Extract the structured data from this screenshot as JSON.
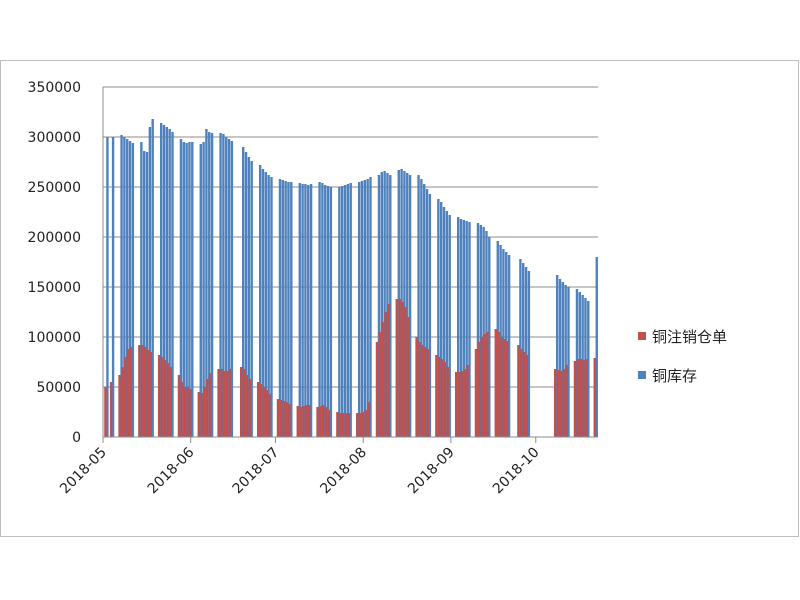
{
  "chart_data": {
    "type": "bar",
    "title": "",
    "xlabel": "",
    "ylabel": "",
    "ylim": [
      0,
      350000
    ],
    "y_ticks": [
      "0",
      "50000",
      "100000",
      "150000",
      "200000",
      "250000",
      "300000",
      "350000"
    ],
    "x_ticks": [
      "2018-05",
      "2018-06",
      "2018-07",
      "2018-08",
      "2018-09",
      "2018-10"
    ],
    "grid": "horizontal",
    "legend_position": "right",
    "series": [
      {
        "name": "铜注销仓单",
        "color": "#c0504d",
        "points": [
          [
            "2018-05-02",
            50000
          ],
          [
            "2018-05-04",
            55000
          ],
          [
            "2018-05-07",
            62000
          ],
          [
            "2018-05-08",
            70000
          ],
          [
            "2018-05-09",
            80000
          ],
          [
            "2018-05-10",
            88000
          ],
          [
            "2018-05-11",
            90000
          ],
          [
            "2018-05-14",
            92000
          ],
          [
            "2018-05-15",
            92000
          ],
          [
            "2018-05-16",
            90000
          ],
          [
            "2018-05-17",
            87000
          ],
          [
            "2018-05-18",
            85000
          ],
          [
            "2018-05-21",
            82000
          ],
          [
            "2018-05-22",
            80000
          ],
          [
            "2018-05-23",
            77000
          ],
          [
            "2018-05-24",
            74000
          ],
          [
            "2018-05-25",
            70000
          ],
          [
            "2018-05-28",
            62000
          ],
          [
            "2018-05-29",
            55000
          ],
          [
            "2018-05-30",
            50000
          ],
          [
            "2018-05-31",
            50000
          ],
          [
            "2018-06-01",
            48000
          ],
          [
            "2018-06-04",
            45000
          ],
          [
            "2018-06-05",
            44000
          ],
          [
            "2018-06-06",
            50000
          ],
          [
            "2018-06-07",
            58000
          ],
          [
            "2018-06-08",
            64000
          ],
          [
            "2018-06-11",
            68000
          ],
          [
            "2018-06-12",
            68000
          ],
          [
            "2018-06-13",
            66000
          ],
          [
            "2018-06-14",
            66000
          ],
          [
            "2018-06-15",
            68000
          ],
          [
            "2018-06-19",
            70000
          ],
          [
            "2018-06-20",
            68000
          ],
          [
            "2018-06-21",
            62000
          ],
          [
            "2018-06-22",
            58000
          ],
          [
            "2018-06-25",
            55000
          ],
          [
            "2018-06-26",
            53000
          ],
          [
            "2018-06-27",
            50000
          ],
          [
            "2018-06-28",
            47000
          ],
          [
            "2018-06-29",
            43000
          ],
          [
            "2018-07-02",
            38000
          ],
          [
            "2018-07-03",
            37000
          ],
          [
            "2018-07-04",
            36000
          ],
          [
            "2018-07-05",
            35000
          ],
          [
            "2018-07-06",
            33000
          ],
          [
            "2018-07-09",
            31000
          ],
          [
            "2018-07-10",
            30000
          ],
          [
            "2018-07-11",
            31000
          ],
          [
            "2018-07-12",
            32000
          ],
          [
            "2018-07-13",
            32000
          ],
          [
            "2018-07-16",
            30000
          ],
          [
            "2018-07-17",
            31000
          ],
          [
            "2018-07-18",
            32000
          ],
          [
            "2018-07-19",
            30000
          ],
          [
            "2018-07-20",
            27000
          ],
          [
            "2018-07-23",
            25000
          ],
          [
            "2018-07-24",
            24000
          ],
          [
            "2018-07-25",
            24000
          ],
          [
            "2018-07-26",
            24000
          ],
          [
            "2018-07-27",
            24000
          ],
          [
            "2018-07-30",
            24000
          ],
          [
            "2018-07-31",
            24000
          ],
          [
            "2018-08-01",
            25000
          ],
          [
            "2018-08-02",
            27000
          ],
          [
            "2018-08-03",
            35000
          ],
          [
            "2018-08-06",
            95000
          ],
          [
            "2018-08-07",
            105000
          ],
          [
            "2018-08-08",
            115000
          ],
          [
            "2018-08-09",
            125000
          ],
          [
            "2018-08-10",
            133000
          ],
          [
            "2018-08-13",
            138000
          ],
          [
            "2018-08-14",
            138000
          ],
          [
            "2018-08-15",
            135000
          ],
          [
            "2018-08-16",
            130000
          ],
          [
            "2018-08-17",
            120000
          ],
          [
            "2018-08-20",
            100000
          ],
          [
            "2018-08-21",
            95000
          ],
          [
            "2018-08-22",
            92000
          ],
          [
            "2018-08-23",
            90000
          ],
          [
            "2018-08-24",
            88000
          ],
          [
            "2018-08-27",
            82000
          ],
          [
            "2018-08-28",
            80000
          ],
          [
            "2018-08-29",
            78000
          ],
          [
            "2018-08-30",
            75000
          ],
          [
            "2018-08-31",
            70000
          ],
          [
            "2018-09-03",
            65000
          ],
          [
            "2018-09-04",
            65000
          ],
          [
            "2018-09-05",
            66000
          ],
          [
            "2018-09-06",
            68000
          ],
          [
            "2018-09-07",
            72000
          ],
          [
            "2018-09-10",
            88000
          ],
          [
            "2018-09-11",
            95000
          ],
          [
            "2018-09-12",
            100000
          ],
          [
            "2018-09-13",
            103000
          ],
          [
            "2018-09-14",
            105000
          ],
          [
            "2018-09-17",
            108000
          ],
          [
            "2018-09-18",
            105000
          ],
          [
            "2018-09-19",
            100000
          ],
          [
            "2018-09-20",
            98000
          ],
          [
            "2018-09-21",
            96000
          ],
          [
            "2018-09-25",
            92000
          ],
          [
            "2018-09-26",
            88000
          ],
          [
            "2018-09-27",
            85000
          ],
          [
            "2018-09-28",
            82000
          ],
          [
            "2018-10-08",
            68000
          ],
          [
            "2018-10-09",
            67000
          ],
          [
            "2018-10-10",
            66000
          ],
          [
            "2018-10-11",
            68000
          ],
          [
            "2018-10-12",
            72000
          ],
          [
            "2018-10-15",
            76000
          ],
          [
            "2018-10-16",
            78000
          ],
          [
            "2018-10-17",
            78000
          ],
          [
            "2018-10-18",
            77000
          ],
          [
            "2018-10-19",
            78000
          ],
          [
            "2018-10-22",
            79000
          ]
        ]
      },
      {
        "name": "铜库存",
        "color": "#4f81bd",
        "points": [
          [
            "2018-05-02",
            300000
          ],
          [
            "2018-05-04",
            300000
          ],
          [
            "2018-05-07",
            302000
          ],
          [
            "2018-05-08",
            300000
          ],
          [
            "2018-05-09",
            298000
          ],
          [
            "2018-05-10",
            296000
          ],
          [
            "2018-05-11",
            294000
          ],
          [
            "2018-05-14",
            295000
          ],
          [
            "2018-05-15",
            286000
          ],
          [
            "2018-05-16",
            285000
          ],
          [
            "2018-05-17",
            310000
          ],
          [
            "2018-05-18",
            318000
          ],
          [
            "2018-05-21",
            314000
          ],
          [
            "2018-05-22",
            312000
          ],
          [
            "2018-05-23",
            310000
          ],
          [
            "2018-05-24",
            308000
          ],
          [
            "2018-05-25",
            305000
          ],
          [
            "2018-05-28",
            298000
          ],
          [
            "2018-05-29",
            295000
          ],
          [
            "2018-05-30",
            294000
          ],
          [
            "2018-05-31",
            295000
          ],
          [
            "2018-06-01",
            295000
          ],
          [
            "2018-06-04",
            293000
          ],
          [
            "2018-06-05",
            295000
          ],
          [
            "2018-06-06",
            308000
          ],
          [
            "2018-06-07",
            305000
          ],
          [
            "2018-06-08",
            304000
          ],
          [
            "2018-06-11",
            304000
          ],
          [
            "2018-06-12",
            303000
          ],
          [
            "2018-06-13",
            300000
          ],
          [
            "2018-06-14",
            298000
          ],
          [
            "2018-06-15",
            296000
          ],
          [
            "2018-06-19",
            290000
          ],
          [
            "2018-06-20",
            285000
          ],
          [
            "2018-06-21",
            280000
          ],
          [
            "2018-06-22",
            276000
          ],
          [
            "2018-06-25",
            272000
          ],
          [
            "2018-06-26",
            268000
          ],
          [
            "2018-06-27",
            265000
          ],
          [
            "2018-06-28",
            262000
          ],
          [
            "2018-06-29",
            260000
          ],
          [
            "2018-07-02",
            258000
          ],
          [
            "2018-07-03",
            257000
          ],
          [
            "2018-07-04",
            256000
          ],
          [
            "2018-07-05",
            255000
          ],
          [
            "2018-07-06",
            255000
          ],
          [
            "2018-07-09",
            254000
          ],
          [
            "2018-07-10",
            253000
          ],
          [
            "2018-07-11",
            253000
          ],
          [
            "2018-07-12",
            252000
          ],
          [
            "2018-07-13",
            253000
          ],
          [
            "2018-07-16",
            255000
          ],
          [
            "2018-07-17",
            254000
          ],
          [
            "2018-07-18",
            252000
          ],
          [
            "2018-07-19",
            251000
          ],
          [
            "2018-07-20",
            250000
          ],
          [
            "2018-07-23",
            250000
          ],
          [
            "2018-07-24",
            251000
          ],
          [
            "2018-07-25",
            252000
          ],
          [
            "2018-07-26",
            253000
          ],
          [
            "2018-07-27",
            254000
          ],
          [
            "2018-07-30",
            255000
          ],
          [
            "2018-07-31",
            256000
          ],
          [
            "2018-08-01",
            257000
          ],
          [
            "2018-08-02",
            258000
          ],
          [
            "2018-08-03",
            260000
          ],
          [
            "2018-08-06",
            262000
          ],
          [
            "2018-08-07",
            265000
          ],
          [
            "2018-08-08",
            266000
          ],
          [
            "2018-08-09",
            264000
          ],
          [
            "2018-08-10",
            262000
          ],
          [
            "2018-08-13",
            267000
          ],
          [
            "2018-08-14",
            268000
          ],
          [
            "2018-08-15",
            266000
          ],
          [
            "2018-08-16",
            264000
          ],
          [
            "2018-08-17",
            262000
          ],
          [
            "2018-08-20",
            262000
          ],
          [
            "2018-08-21",
            258000
          ],
          [
            "2018-08-22",
            253000
          ],
          [
            "2018-08-23",
            248000
          ],
          [
            "2018-08-24",
            243000
          ],
          [
            "2018-08-27",
            238000
          ],
          [
            "2018-08-28",
            235000
          ],
          [
            "2018-08-29",
            230000
          ],
          [
            "2018-08-30",
            226000
          ],
          [
            "2018-08-31",
            222000
          ],
          [
            "2018-09-03",
            220000
          ],
          [
            "2018-09-04",
            218000
          ],
          [
            "2018-09-05",
            217000
          ],
          [
            "2018-09-06",
            216000
          ],
          [
            "2018-09-07",
            215000
          ],
          [
            "2018-09-10",
            214000
          ],
          [
            "2018-09-11",
            212000
          ],
          [
            "2018-09-12",
            210000
          ],
          [
            "2018-09-13",
            206000
          ],
          [
            "2018-09-14",
            200000
          ],
          [
            "2018-09-17",
            196000
          ],
          [
            "2018-09-18",
            192000
          ],
          [
            "2018-09-19",
            188000
          ],
          [
            "2018-09-20",
            185000
          ],
          [
            "2018-09-21",
            182000
          ],
          [
            "2018-09-25",
            178000
          ],
          [
            "2018-09-26",
            174000
          ],
          [
            "2018-09-27",
            170000
          ],
          [
            "2018-09-28",
            166000
          ],
          [
            "2018-10-08",
            162000
          ],
          [
            "2018-10-09",
            158000
          ],
          [
            "2018-10-10",
            155000
          ],
          [
            "2018-10-11",
            152000
          ],
          [
            "2018-10-12",
            150000
          ],
          [
            "2018-10-15",
            148000
          ],
          [
            "2018-10-16",
            145000
          ],
          [
            "2018-10-17",
            142000
          ],
          [
            "2018-10-18",
            139000
          ],
          [
            "2018-10-19",
            136000
          ],
          [
            "2018-10-22",
            180000
          ]
        ]
      }
    ]
  }
}
